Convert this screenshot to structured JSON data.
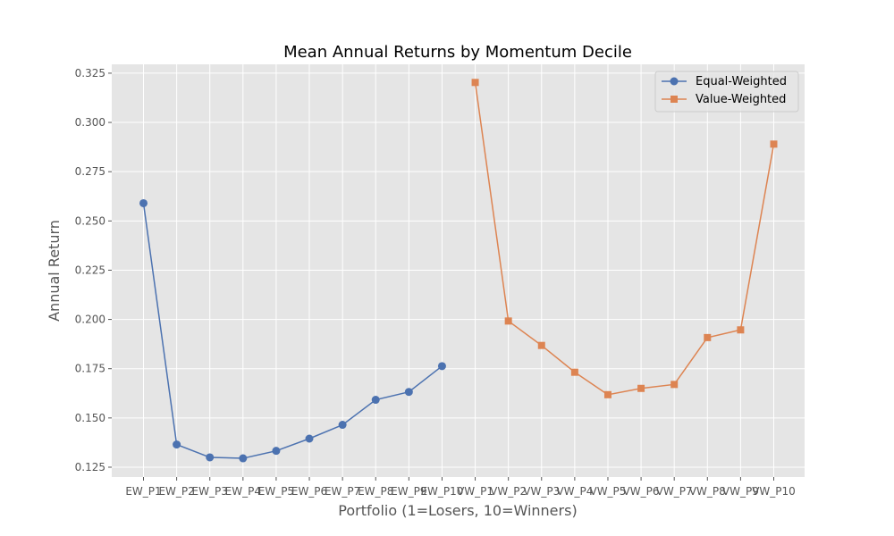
{
  "chart_data": {
    "type": "line",
    "title": "Mean Annual Returns by Momentum Decile",
    "xlabel": "Portfolio (1=Losers, 10=Winners)",
    "ylabel": "Annual Return",
    "categories": [
      "EW_P1",
      "EW_P2",
      "EW_P3",
      "EW_P4",
      "EW_P5",
      "EW_P6",
      "EW_P7",
      "EW_P8",
      "EW_P9",
      "EW_P10",
      "VW_P1",
      "VW_P2",
      "VW_P3",
      "VW_P4",
      "VW_P5",
      "VW_P6",
      "VW_P7",
      "VW_P8",
      "VW_P9",
      "VW_P10"
    ],
    "ylim": [
      0.12,
      0.3295
    ],
    "yticks": [
      "0.125",
      "0.150",
      "0.175",
      "0.200",
      "0.225",
      "0.250",
      "0.275",
      "0.300",
      "0.325"
    ],
    "grid": true,
    "legend_position": "top-right",
    "series": [
      {
        "name": "Equal-Weighted",
        "color": "#4c72b0",
        "marker": "circle",
        "x": [
          "EW_P1",
          "EW_P2",
          "EW_P3",
          "EW_P4",
          "EW_P5",
          "EW_P6",
          "EW_P7",
          "EW_P8",
          "EW_P9",
          "EW_P10"
        ],
        "values": [
          0.259,
          0.1365,
          0.13,
          0.1295,
          0.1333,
          0.1395,
          0.1465,
          0.1592,
          0.1632,
          0.1763
        ]
      },
      {
        "name": "Value-Weighted",
        "color": "#dd8452",
        "marker": "square",
        "x": [
          "VW_P1",
          "VW_P2",
          "VW_P3",
          "VW_P4",
          "VW_P5",
          "VW_P6",
          "VW_P7",
          "VW_P8",
          "VW_P9",
          "VW_P10"
        ],
        "values": [
          0.3203,
          0.1992,
          0.1868,
          0.1732,
          0.1618,
          0.165,
          0.167,
          0.1908,
          0.1947,
          0.289
        ]
      }
    ]
  }
}
